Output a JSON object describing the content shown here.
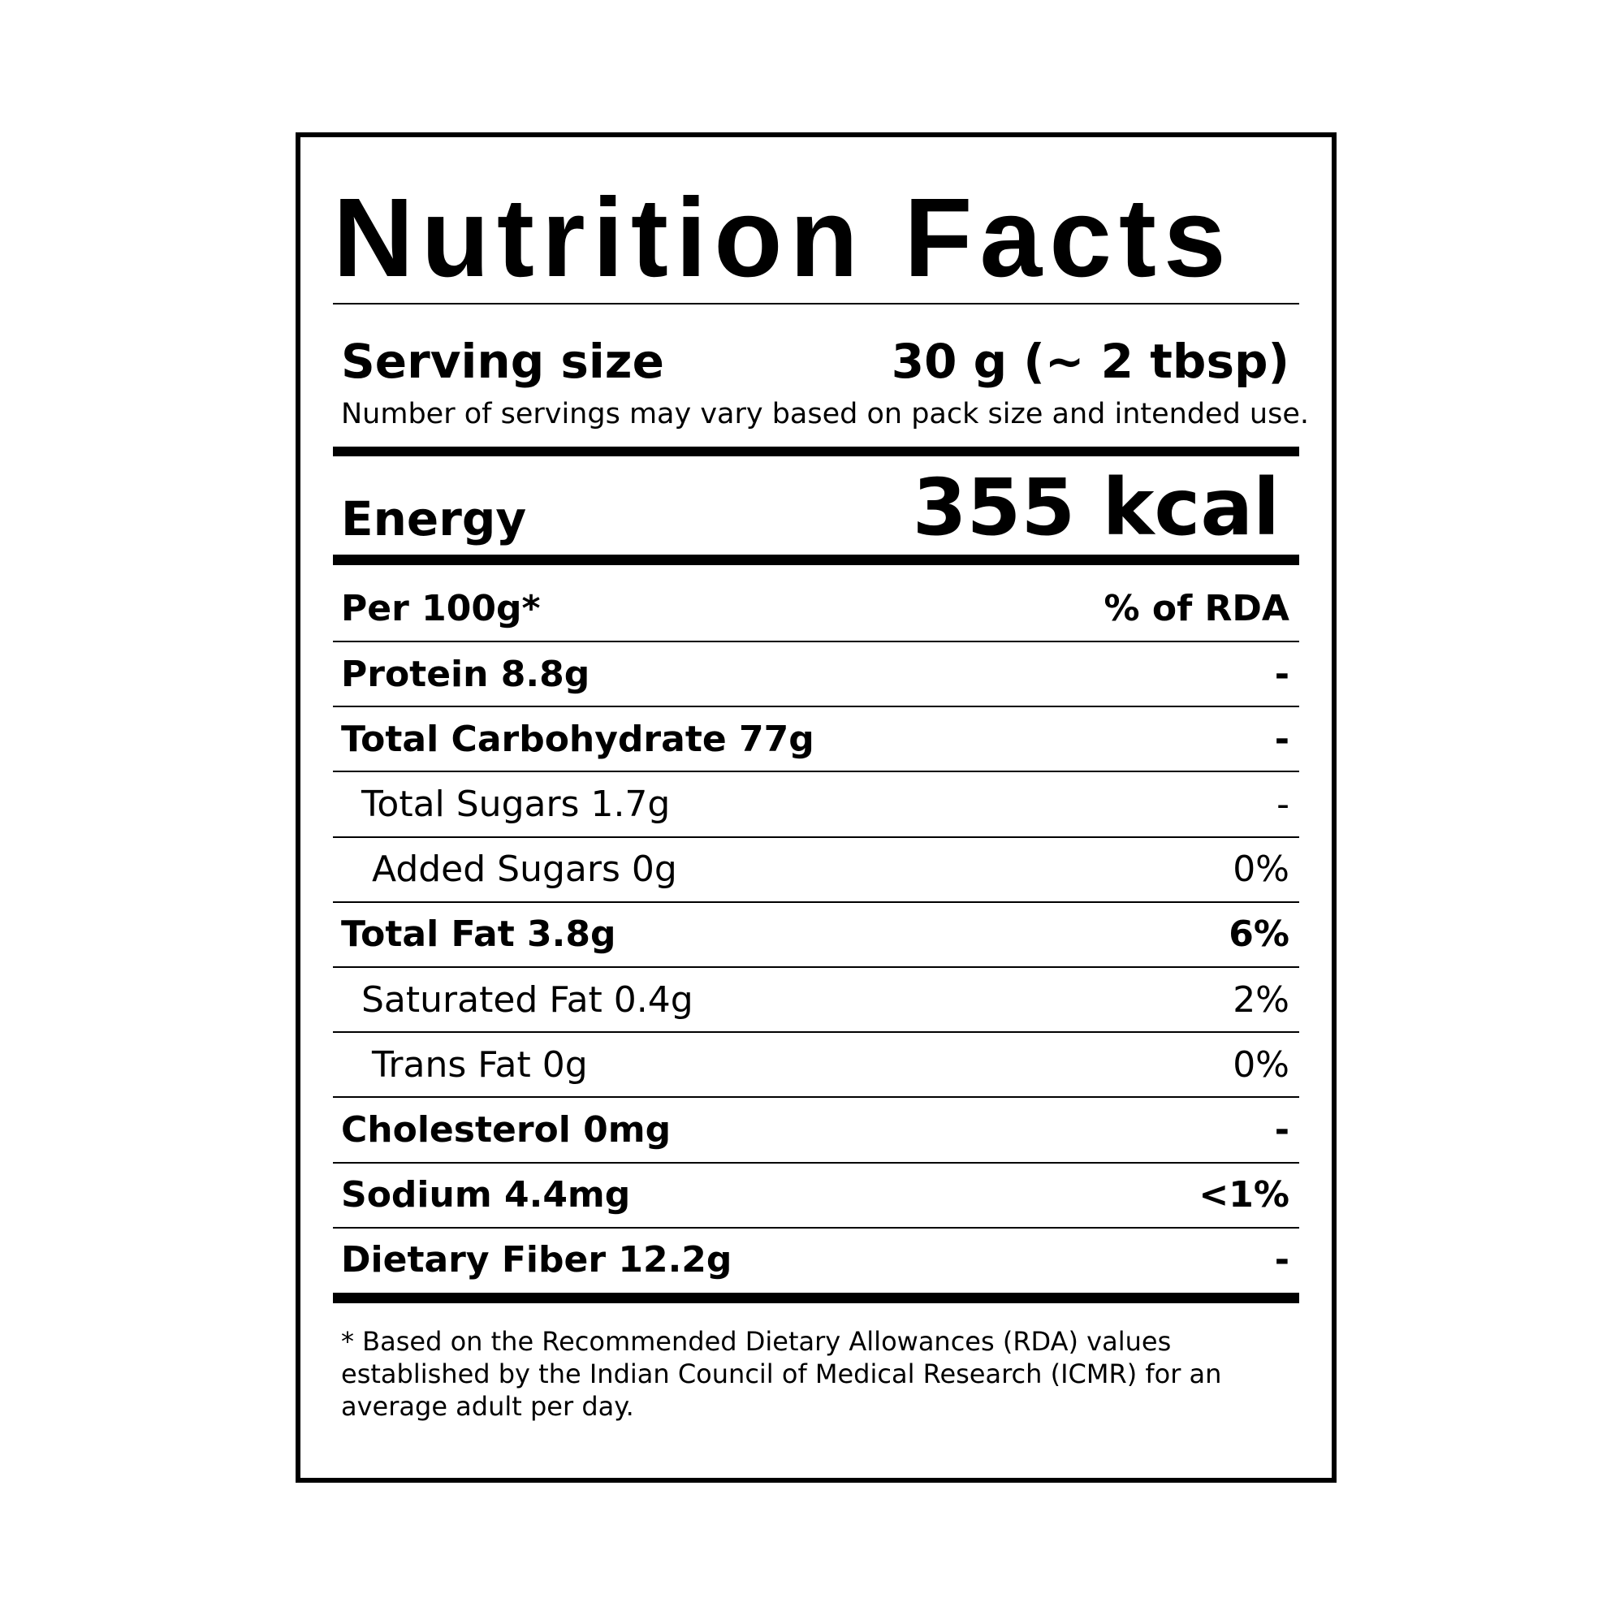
{
  "label": {
    "title": "Nutrition Facts",
    "serving_label": "Serving size",
    "serving_value": "30 g (~ 2 tbsp)",
    "serving_note": "Number of servings may vary based on pack size and intended use.",
    "energy_label": "Energy",
    "energy_value": "355 kcal",
    "header_left": "Per 100g*",
    "header_right": "% of RDA",
    "rows": [
      [
        "Protein 8.8g",
        "-"
      ],
      [
        "Total Carbohydrate 77g",
        "-"
      ],
      [
        "Total Sugars 1.7g",
        "-"
      ],
      [
        "Added Sugars 0g",
        "0%"
      ],
      [
        "Total Fat 3.8g",
        "6%"
      ],
      [
        "Saturated Fat 0.4g",
        "2%"
      ],
      [
        "Trans Fat 0g",
        "0%"
      ],
      [
        "Cholesterol 0mg",
        "-"
      ],
      [
        "Sodium 4.4mg",
        "<1%"
      ],
      [
        "Dietary Fiber 12.2g",
        "-"
      ]
    ],
    "footnote": "* Based on the Recommended Dietary Allowances (RDA) values established by the Indian Council of Medical Research (ICMR) for an average adult per day."
  }
}
